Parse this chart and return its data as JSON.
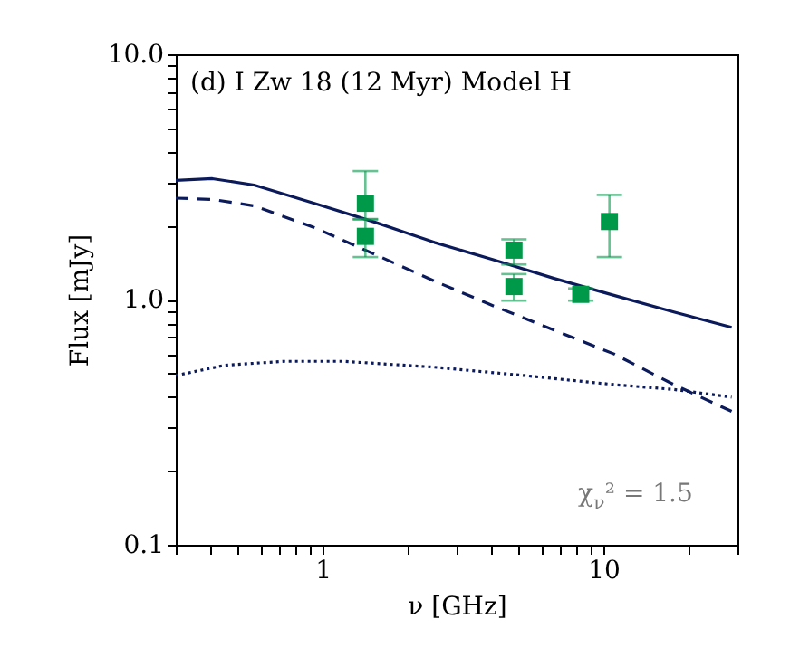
{
  "chart_data": {
    "type": "line",
    "xlabel": "ν [GHz]",
    "ylabel": "Flux [mJy]",
    "log": "xy",
    "grid": false,
    "xlim": [
      0.3,
      30
    ],
    "ylim": [
      0.1,
      10
    ],
    "xticks": [
      {
        "value": 0.3,
        "label": null
      },
      {
        "value": 0.4,
        "label": null
      },
      {
        "value": 0.5,
        "label": null
      },
      {
        "value": 0.6,
        "label": null
      },
      {
        "value": 0.7,
        "label": null
      },
      {
        "value": 0.8,
        "label": null
      },
      {
        "value": 0.9,
        "label": null
      },
      1,
      {
        "value": 2,
        "label": null
      },
      {
        "value": 3,
        "label": null
      },
      {
        "value": 4,
        "label": null
      },
      {
        "value": 5,
        "label": null
      },
      {
        "value": 6,
        "label": null
      },
      {
        "value": 7,
        "label": null
      },
      {
        "value": 8,
        "label": null
      },
      {
        "value": 9,
        "label": null
      },
      10,
      {
        "value": 20,
        "label": null
      },
      {
        "value": 30,
        "label": null
      }
    ],
    "yticks": [
      0.1,
      {
        "value": 0.2,
        "label": null
      },
      {
        "value": 0.3,
        "label": null
      },
      {
        "value": 0.4,
        "label": null
      },
      {
        "value": 0.5,
        "label": null
      },
      {
        "value": 0.6,
        "label": null
      },
      {
        "value": 0.7,
        "label": null
      },
      {
        "value": 0.8,
        "label": null
      },
      {
        "value": 0.9,
        "label": null
      },
      {
        "value": 1,
        "label": "1.0"
      },
      {
        "value": 2,
        "label": null
      },
      {
        "value": 3,
        "label": null
      },
      {
        "value": 4,
        "label": null
      },
      {
        "value": 5,
        "label": null
      },
      {
        "value": 6,
        "label": null
      },
      {
        "value": 7,
        "label": null
      },
      {
        "value": 8,
        "label": null
      },
      {
        "value": 9,
        "label": null
      },
      {
        "value": 10,
        "label": "10.0"
      }
    ],
    "annotations": [
      "(d) I Zw 18 (12 Myr) Model H",
      "χ$_{ν}$² = 1.5"
    ],
    "series": [
      {
        "line_style": "solid",
        "color": "#0b1a5a",
        "x": [
          0.3,
          0.405,
          0.57,
          0.93,
          1.53,
          2.5,
          4.08,
          6.67,
          10.9,
          17.8,
          28.6
        ],
        "values": [
          3.06,
          3.11,
          2.93,
          2.47,
          2.07,
          1.71,
          1.45,
          1.22,
          1.04,
          0.89,
          0.77
        ]
      },
      {
        "line_style": "dashed",
        "color": "#0b1a5a",
        "x": [
          0.3,
          0.405,
          0.57,
          0.93,
          1.53,
          2.5,
          4.08,
          6.67,
          10.9,
          17.8,
          28.6
        ],
        "values": [
          2.59,
          2.56,
          2.41,
          1.97,
          1.53,
          1.19,
          0.94,
          0.75,
          0.6,
          0.45,
          0.35
        ]
      },
      {
        "line_style": "dotted",
        "color": "#0b1a5a",
        "x": [
          0.3,
          0.45,
          0.73,
          1.19,
          2.5,
          5.22,
          10.9,
          17.8,
          28.6
        ],
        "values": [
          0.49,
          0.54,
          0.56,
          0.56,
          0.53,
          0.49,
          0.45,
          0.43,
          0.4
        ]
      },
      {
        "type": "scatter",
        "marker": "square",
        "color": "#00994a",
        "x": [
          1.42,
          1.42,
          4.8,
          4.8,
          8.3,
          10.5
        ],
        "values": [
          2.47,
          1.81,
          1.59,
          1.13,
          1.05,
          2.08
        ],
        "errors": [
          [
            2.12,
            3.34
          ],
          [
            1.49,
            2.13
          ],
          [
            1.39,
            1.76
          ],
          [
            0.99,
            1.27
          ],
          [
            0.99,
            1.11
          ],
          [
            1.49,
            2.67
          ]
        ]
      }
    ]
  }
}
